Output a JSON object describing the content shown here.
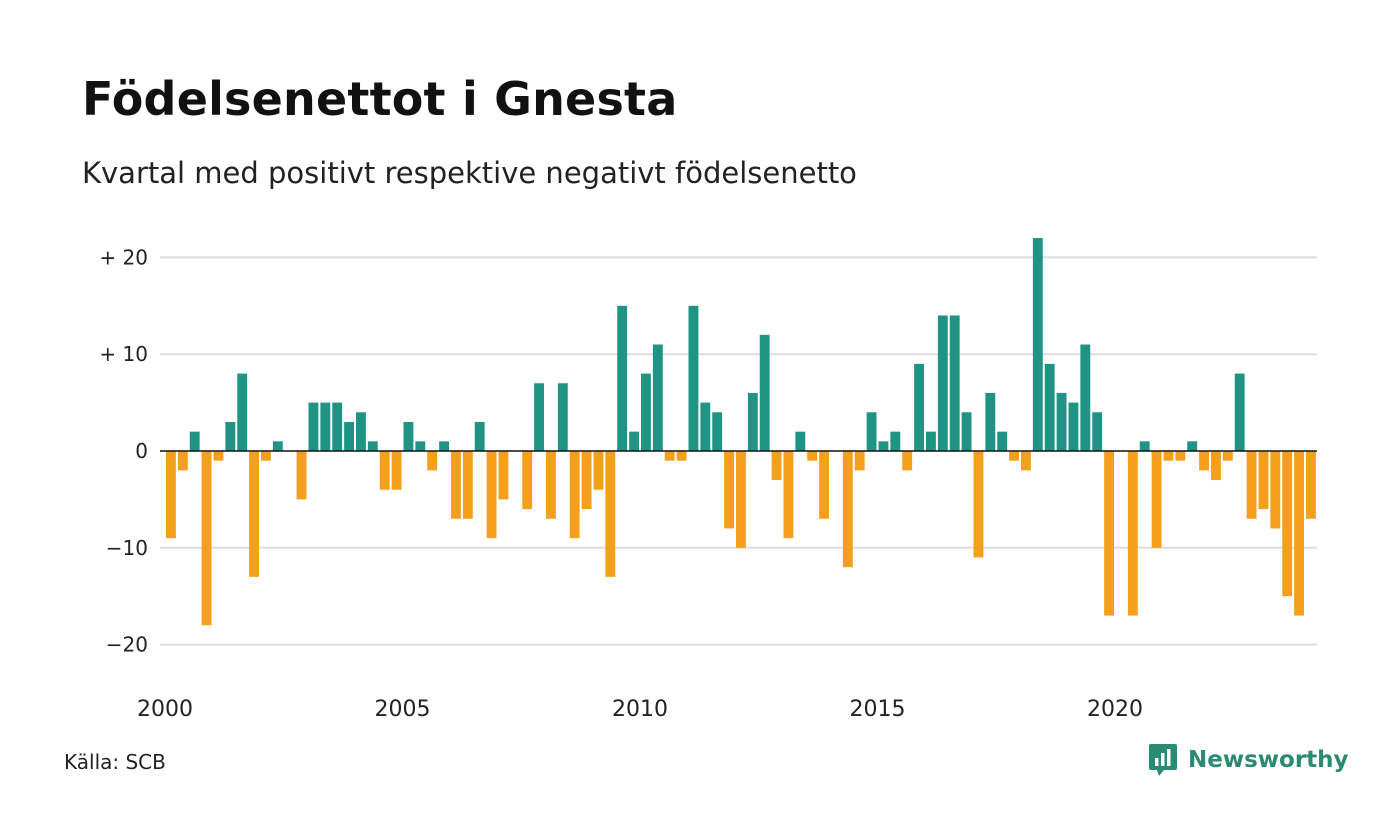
{
  "title": "Födelsenettot i Gnesta",
  "subtitle": "Kvartal med positivt respektive negativt födelsenetto",
  "source": "Källa: SCB",
  "brand": "Newsworthy",
  "colors": {
    "positive": "#1f9484",
    "negative": "#f5a01d",
    "grid": "#dddddd",
    "zero": "#111111",
    "brand": "#2b8a74"
  },
  "chart_data": {
    "type": "bar",
    "xlim": [
      2000,
      2024.75
    ],
    "ylim": [
      -22,
      22
    ],
    "yticks": [
      20,
      10,
      0,
      -10,
      -20
    ],
    "ytick_labels": [
      "+ 20",
      "+ 10",
      "0",
      "−10",
      "−20"
    ],
    "xticks": [
      2000,
      2005,
      2010,
      2015,
      2020
    ],
    "xtick_labels": [
      "2000",
      "2005",
      "2010",
      "2015",
      "2020"
    ],
    "grid": true,
    "start_quarter": "2000 Q1",
    "values": [
      -9,
      -2,
      2,
      -18,
      -1,
      3,
      8,
      -13,
      -1,
      1,
      0,
      -5,
      5,
      5,
      5,
      3,
      4,
      1,
      -4,
      -4,
      3,
      1,
      -2,
      1,
      -7,
      -7,
      3,
      -9,
      -5,
      0,
      -6,
      7,
      -7,
      7,
      -9,
      -6,
      -4,
      -13,
      15,
      2,
      8,
      11,
      -1,
      -1,
      15,
      5,
      4,
      -8,
      -10,
      6,
      12,
      -3,
      -9,
      2,
      -1,
      -7,
      0,
      -12,
      -2,
      4,
      1,
      2,
      -2,
      9,
      2,
      14,
      14,
      4,
      -11,
      6,
      2,
      -1,
      -2,
      22,
      9,
      6,
      5,
      11,
      4,
      -17,
      0,
      -17,
      1,
      -10,
      -1,
      -1,
      1,
      -2,
      -3,
      -1,
      8,
      -7,
      -6,
      -8,
      -15,
      -17,
      -7
    ]
  }
}
